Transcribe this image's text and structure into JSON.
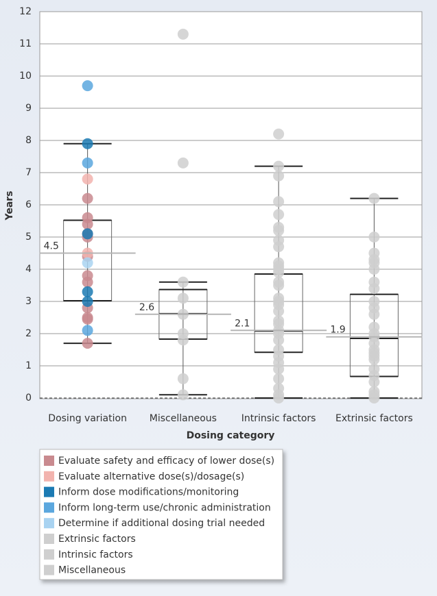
{
  "chart_data": {
    "type": "box",
    "x_label": "Dosing category",
    "y_label": "Years",
    "categories": [
      "Dosing variation",
      "Miscellaneous",
      "Intrinsic factors",
      "Extrinsic factors"
    ],
    "ylim": [
      0,
      12
    ],
    "yticks": [
      0,
      1,
      2,
      3,
      4,
      5,
      6,
      7,
      8,
      9,
      10,
      11,
      12
    ],
    "grid": true,
    "boxes": [
      {
        "whislo": 1.7,
        "q1": 3.02,
        "med": 4.5,
        "q3": 5.52,
        "whishi": 7.9,
        "mean": 4.5
      },
      {
        "whislo": 0.1,
        "q1": 1.83,
        "med": 2.62,
        "q3": 3.37,
        "whishi": 3.6,
        "mean": 2.6
      },
      {
        "whislo": 0,
        "q1": 1.42,
        "med": 2.08,
        "q3": 3.85,
        "whishi": 7.2,
        "mean": 2.1
      },
      {
        "whislo": 0,
        "q1": 0.67,
        "med": 1.85,
        "q3": 3.22,
        "whishi": 6.2,
        "mean": 1.9
      }
    ],
    "series": [
      {
        "name": "Evaluate safety and efficacy of lower dose(s)",
        "color": "#c98a8f",
        "values": [
          [
            1.7,
            2.45,
            2.5,
            2.8,
            3.6,
            3.8,
            4.4,
            5.0,
            5.1,
            5.4,
            5.6,
            6.2
          ],
          [],
          [],
          []
        ]
      },
      {
        "name": "Evaluate alternative dose(s)/dosage(s)",
        "color": "#f2b3ae",
        "values": [
          [
            6.8,
            4.5
          ],
          [],
          [],
          []
        ]
      },
      {
        "name": "Inform dose modifications/monitoring",
        "color": "#1b7ab3",
        "values": [
          [
            7.9,
            5.1,
            3.3,
            3.0
          ],
          [],
          [],
          []
        ]
      },
      {
        "name": "Inform long-term use/chronic administration",
        "color": "#5ba7de",
        "values": [
          [
            9.7,
            7.3,
            2.1
          ],
          [],
          [],
          []
        ]
      },
      {
        "name": "Determine if additional dosing trial needed",
        "color": "#a9d3f1",
        "values": [
          [
            4.2
          ],
          [],
          [],
          []
        ]
      },
      {
        "name": "Extrinsic factors",
        "color": "#cfcfcf",
        "values": [
          [],
          [],
          [],
          [
            6.2,
            5.0,
            4.5,
            4.3,
            4.2,
            4.0,
            3.6,
            3.4,
            3.0,
            2.8,
            2.6,
            2.2,
            2.0,
            1.9,
            1.7,
            1.5,
            1.4,
            1.3,
            1.2,
            0.9,
            0.7,
            0.5,
            0.2,
            0.1,
            0
          ]
        ]
      },
      {
        "name": "Intrinsic factors",
        "color": "#cfcfcf",
        "values": [
          [],
          [],
          [
            8.2,
            7.2,
            6.9,
            6.1,
            5.7,
            5.3,
            5.2,
            4.9,
            4.7,
            4.2,
            4.1,
            4.0,
            3.9,
            3.6,
            3.5,
            3.1,
            3.0,
            2.9,
            2.7,
            2.4,
            2.3,
            2.1,
            2.0,
            1.8,
            1.5,
            1.3,
            1.1,
            0.9,
            0.6,
            0.3,
            0.1,
            0
          ],
          []
        ]
      },
      {
        "name": "Miscellaneous",
        "color": "#cfcfcf",
        "values": [
          [],
          [
            11.3,
            7.3,
            3.6,
            3.1,
            2.6,
            2.0,
            1.8,
            0.6,
            0.1
          ],
          [],
          []
        ]
      }
    ]
  }
}
